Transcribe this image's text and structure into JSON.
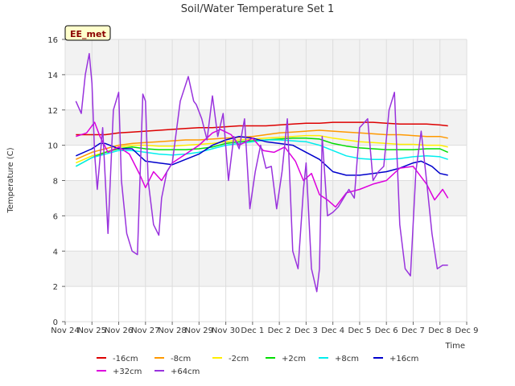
{
  "chart_data": {
    "type": "line",
    "title": "Soil/Water Temperature Set 1",
    "xlabel": "Time",
    "ylabel": "Temperature (C)",
    "badge": "EE_met",
    "ylim": [
      0,
      16
    ],
    "yticks": [
      0,
      2,
      4,
      6,
      8,
      10,
      12,
      14,
      16
    ],
    "xlim": [
      0,
      15
    ],
    "xticks": [
      {
        "pos": 0,
        "label": "Nov 24"
      },
      {
        "pos": 1,
        "label": "Nov 25"
      },
      {
        "pos": 2,
        "label": "Nov 26"
      },
      {
        "pos": 3,
        "label": "Nov 27"
      },
      {
        "pos": 4,
        "label": "Nov 28"
      },
      {
        "pos": 5,
        "label": "Nov 29"
      },
      {
        "pos": 6,
        "label": "Nov 30"
      },
      {
        "pos": 7,
        "label": "Dec 1"
      },
      {
        "pos": 8,
        "label": "Dec 2"
      },
      {
        "pos": 9,
        "label": "Dec 3"
      },
      {
        "pos": 10,
        "label": "Dec 4"
      },
      {
        "pos": 11,
        "label": "Dec 5"
      },
      {
        "pos": 12,
        "label": "Dec 6"
      },
      {
        "pos": 13,
        "label": "Dec 7"
      },
      {
        "pos": 14,
        "label": "Dec 8"
      },
      {
        "pos": 15,
        "label": "Dec 9"
      }
    ],
    "grid": true,
    "legend_position": "bottom",
    "series": [
      {
        "name": "-16cm",
        "color": "#dd0000",
        "x": [
          0.4,
          1,
          1.5,
          2,
          2.5,
          3,
          3.5,
          4,
          4.5,
          5,
          5.5,
          6,
          6.5,
          7,
          7.5,
          8,
          8.5,
          9,
          9.5,
          10,
          10.5,
          11,
          11.5,
          12,
          12.5,
          13,
          13.5,
          14,
          14.3
        ],
        "y": [
          10.6,
          10.6,
          10.6,
          10.7,
          10.75,
          10.8,
          10.85,
          10.9,
          10.95,
          11.0,
          11.0,
          11.05,
          11.1,
          11.1,
          11.1,
          11.15,
          11.2,
          11.25,
          11.25,
          11.3,
          11.3,
          11.3,
          11.3,
          11.25,
          11.2,
          11.2,
          11.2,
          11.15,
          11.1
        ]
      },
      {
        "name": "-8cm",
        "color": "#ff9900",
        "x": [
          0.4,
          1,
          1.5,
          2,
          2.5,
          3,
          3.5,
          4,
          4.5,
          5,
          5.5,
          6,
          6.5,
          7,
          7.5,
          8,
          8.5,
          9,
          9.5,
          10,
          10.5,
          11,
          11.5,
          12,
          12.5,
          13,
          13.5,
          14,
          14.3
        ],
        "y": [
          9.2,
          9.6,
          9.8,
          10.0,
          10.1,
          10.15,
          10.2,
          10.25,
          10.3,
          10.3,
          10.35,
          10.4,
          10.45,
          10.5,
          10.6,
          10.7,
          10.75,
          10.8,
          10.85,
          10.8,
          10.75,
          10.7,
          10.65,
          10.6,
          10.6,
          10.55,
          10.5,
          10.5,
          10.4
        ]
      },
      {
        "name": "-2cm",
        "color": "#ffee00",
        "x": [
          0.4,
          1,
          1.5,
          2,
          2.5,
          3,
          3.5,
          4,
          4.5,
          5,
          5.5,
          6,
          6.5,
          7,
          7.5,
          8,
          8.5,
          9,
          9.5,
          10,
          10.5,
          11,
          11.5,
          12,
          12.5,
          13,
          13.5,
          14,
          14.3
        ],
        "y": [
          9.0,
          9.4,
          9.6,
          9.9,
          10.0,
          10.0,
          9.95,
          9.95,
          10.0,
          10.05,
          10.1,
          10.2,
          10.3,
          10.35,
          10.4,
          10.45,
          10.5,
          10.55,
          10.55,
          10.4,
          10.3,
          10.2,
          10.15,
          10.1,
          10.05,
          10.05,
          10.0,
          10.0,
          9.9
        ]
      },
      {
        "name": "+2cm",
        "color": "#00dd00",
        "x": [
          0.4,
          1,
          1.5,
          2,
          2.5,
          3,
          3.5,
          4,
          4.5,
          5,
          5.5,
          6,
          6.5,
          7,
          7.5,
          8,
          8.5,
          9,
          9.5,
          10,
          10.5,
          11,
          11.5,
          12,
          12.5,
          13,
          13.5,
          14,
          14.3
        ],
        "y": [
          8.8,
          9.3,
          9.6,
          9.8,
          9.9,
          9.8,
          9.75,
          9.75,
          9.75,
          9.8,
          9.9,
          10.1,
          10.2,
          10.25,
          10.3,
          10.35,
          10.4,
          10.4,
          10.35,
          10.1,
          9.95,
          9.85,
          9.8,
          9.75,
          9.75,
          9.75,
          9.8,
          9.8,
          9.6
        ]
      },
      {
        "name": "+8cm",
        "color": "#00eeee",
        "x": [
          0.4,
          1,
          1.5,
          2,
          2.5,
          3,
          3.5,
          4,
          4.5,
          5,
          5.5,
          6,
          6.5,
          7,
          7.5,
          8,
          8.5,
          9,
          9.5,
          10,
          10.5,
          11,
          11.5,
          12,
          12.5,
          13,
          13.5,
          14,
          14.3
        ],
        "y": [
          8.8,
          9.3,
          9.5,
          9.7,
          9.7,
          9.6,
          9.5,
          9.45,
          9.5,
          9.6,
          9.8,
          10.0,
          10.1,
          10.2,
          10.3,
          10.3,
          10.25,
          10.2,
          10.0,
          9.7,
          9.4,
          9.25,
          9.2,
          9.2,
          9.25,
          9.35,
          9.4,
          9.35,
          9.2
        ]
      },
      {
        "name": "+16cm",
        "color": "#0000cc",
        "x": [
          0.4,
          1,
          1.3,
          1.5,
          2,
          2.5,
          3,
          3.5,
          4,
          4.5,
          5,
          5.5,
          6,
          6.5,
          7,
          7.5,
          8,
          8.5,
          9,
          9.5,
          10,
          10.5,
          11,
          11.5,
          12,
          12.5,
          13,
          13.3,
          13.7,
          14,
          14.3
        ],
        "y": [
          9.4,
          9.8,
          10.1,
          10.1,
          9.8,
          9.8,
          9.1,
          9.0,
          8.9,
          9.2,
          9.5,
          10.0,
          10.3,
          10.5,
          10.4,
          10.2,
          10.1,
          10.0,
          9.6,
          9.2,
          8.5,
          8.3,
          8.3,
          8.4,
          8.5,
          8.7,
          9.0,
          9.1,
          8.8,
          8.4,
          8.3
        ]
      },
      {
        "name": "+32cm",
        "color": "#dd00dd",
        "x": [
          0.4,
          0.8,
          1.1,
          1.3,
          1.6,
          2,
          2.4,
          2.8,
          3.0,
          3.3,
          3.6,
          4,
          4.5,
          5,
          5.5,
          5.8,
          6.2,
          6.5,
          7,
          7.4,
          7.8,
          8.2,
          8.6,
          8.9,
          9.2,
          9.5,
          9.8,
          10.1,
          10.5,
          11,
          11.5,
          12,
          12.5,
          13,
          13.5,
          13.8,
          14.1,
          14.3
        ],
        "y": [
          10.5,
          10.7,
          11.3,
          10.5,
          9.6,
          9.9,
          9.5,
          8.3,
          7.6,
          8.5,
          8.0,
          9.0,
          9.5,
          10.0,
          10.7,
          10.9,
          10.6,
          10.0,
          10.4,
          9.7,
          9.6,
          9.9,
          9.1,
          8.0,
          8.4,
          7.2,
          6.9,
          6.5,
          7.3,
          7.5,
          7.8,
          8.0,
          8.7,
          8.8,
          7.8,
          6.9,
          7.5,
          7.0
        ]
      },
      {
        "name": "+64cm",
        "color": "#9933dd",
        "x": [
          0.4,
          0.6,
          0.75,
          0.9,
          1.0,
          1.1,
          1.2,
          1.4,
          1.6,
          1.8,
          2.0,
          2.1,
          2.3,
          2.5,
          2.7,
          2.9,
          3.0,
          3.1,
          3.3,
          3.5,
          3.6,
          3.8,
          4.0,
          4.3,
          4.6,
          4.8,
          4.9,
          5.1,
          5.3,
          5.5,
          5.7,
          5.9,
          6.1,
          6.3,
          6.5,
          6.7,
          6.9,
          7.1,
          7.3,
          7.5,
          7.7,
          7.9,
          8.1,
          8.3,
          8.5,
          8.7,
          8.9,
          9.0,
          9.2,
          9.4,
          9.5,
          9.6,
          9.8,
          10.0,
          10.2,
          10.4,
          10.6,
          10.8,
          11.0,
          11.3,
          11.5,
          11.7,
          11.9,
          12.1,
          12.3,
          12.5,
          12.7,
          12.9,
          13.1,
          13.3,
          13.5,
          13.7,
          13.9,
          14.1,
          14.3
        ],
        "y": [
          12.5,
          11.8,
          14.0,
          15.2,
          13.5,
          9.5,
          7.5,
          11.0,
          5.0,
          12.0,
          13.0,
          8.0,
          5.0,
          4.0,
          3.8,
          12.9,
          12.5,
          8.0,
          5.5,
          4.9,
          7.0,
          8.5,
          9.0,
          12.5,
          13.9,
          12.5,
          12.3,
          11.5,
          10.3,
          12.8,
          10.5,
          11.8,
          8.0,
          10.5,
          9.8,
          11.5,
          6.4,
          8.5,
          10.0,
          8.7,
          8.8,
          6.4,
          8.5,
          11.5,
          4.0,
          3.0,
          7.5,
          9.0,
          3.0,
          1.7,
          3.0,
          10.5,
          6.0,
          6.2,
          6.5,
          7.0,
          7.5,
          7.0,
          11.0,
          11.5,
          8.0,
          8.5,
          8.8,
          12.0,
          13.0,
          5.5,
          3.0,
          2.6,
          8.5,
          10.8,
          8.0,
          5.0,
          3.0,
          3.2,
          3.2
        ]
      }
    ]
  }
}
